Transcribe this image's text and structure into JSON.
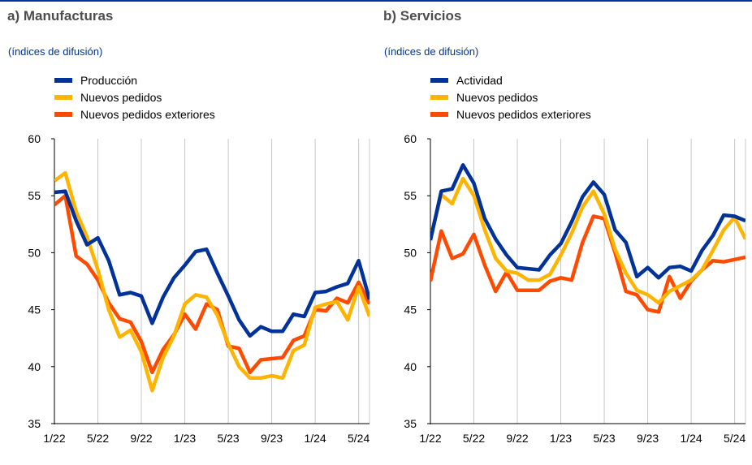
{
  "colors": {
    "blue": "#003299",
    "yellow": "#ffb400",
    "orange": "#ff4b00",
    "grid": "#c8c8c8",
    "subtitle": "#003299",
    "title": "#4d4d4d"
  },
  "panels": [
    {
      "title": "a) Manufacturas",
      "subtitle": "(índices de difusión)"
    },
    {
      "title": "b) Servicios",
      "subtitle": "(índices de difusión)"
    }
  ],
  "chart_data": [
    {
      "type": "line",
      "title": "a) Manufacturas",
      "subtitle": "(índices de difusión)",
      "x": [
        "1/22",
        "2/22",
        "3/22",
        "4/22",
        "5/22",
        "6/22",
        "7/22",
        "8/22",
        "9/22",
        "10/22",
        "11/22",
        "12/22",
        "1/23",
        "2/23",
        "3/23",
        "4/23",
        "5/23",
        "6/23",
        "7/23",
        "8/23",
        "9/23",
        "10/23",
        "11/23",
        "12/23",
        "1/24",
        "2/24",
        "3/24",
        "4/24",
        "5/24",
        "6/24"
      ],
      "xticks": [
        "1/22",
        "5/22",
        "9/22",
        "1/23",
        "5/23",
        "9/23",
        "1/24",
        "5/24"
      ],
      "ylim": [
        35,
        60
      ],
      "yticks": [
        35,
        40,
        45,
        50,
        55,
        60
      ],
      "grid": "vertical",
      "legend_position": "top-left",
      "series": [
        {
          "name": "Producción",
          "color": "#003299",
          "values": [
            55.3,
            55.4,
            52.8,
            50.7,
            51.3,
            49.3,
            46.3,
            46.5,
            46.2,
            43.8,
            46.1,
            47.8,
            48.9,
            50.1,
            50.3,
            48.2,
            46.2,
            44.1,
            42.7,
            43.5,
            43.1,
            43.1,
            44.6,
            44.4,
            46.5,
            46.6,
            47.0,
            47.3,
            49.3,
            45.9
          ]
        },
        {
          "name": "Nuevos pedidos",
          "color": "#ffb400",
          "values": [
            56.3,
            57.0,
            53.6,
            51.4,
            48.5,
            45.0,
            42.6,
            43.2,
            41.3,
            37.9,
            40.8,
            42.7,
            45.5,
            46.3,
            46.1,
            44.5,
            42.0,
            40.0,
            39.0,
            39.0,
            39.2,
            39.0,
            41.4,
            41.9,
            45.2,
            45.5,
            45.7,
            44.1,
            47.0,
            44.4
          ]
        },
        {
          "name": "Nuevos pedidos exteriores",
          "color": "#ff4b00",
          "values": [
            54.2,
            55.0,
            49.7,
            49.0,
            47.6,
            45.6,
            44.2,
            43.9,
            42.2,
            39.5,
            41.5,
            42.8,
            44.6,
            43.3,
            45.5,
            45.0,
            41.8,
            41.6,
            39.5,
            40.6,
            40.7,
            40.8,
            42.3,
            42.7,
            45.0,
            44.9,
            46.0,
            45.6,
            47.4,
            45.5
          ]
        }
      ]
    },
    {
      "type": "line",
      "title": "b) Servicios",
      "subtitle": "(índices de difusión)",
      "x": [
        "1/22",
        "2/22",
        "3/22",
        "4/22",
        "5/22",
        "6/22",
        "7/22",
        "8/22",
        "9/22",
        "10/22",
        "11/22",
        "12/22",
        "1/23",
        "2/23",
        "3/23",
        "4/23",
        "5/23",
        "6/23",
        "7/23",
        "8/23",
        "9/23",
        "10/23",
        "11/23",
        "12/23",
        "1/24",
        "2/24",
        "3/24",
        "4/24",
        "5/24",
        "6/24"
      ],
      "xticks": [
        "1/22",
        "5/22",
        "9/22",
        "1/23",
        "5/23",
        "9/23",
        "1/24",
        "5/24"
      ],
      "ylim": [
        35,
        60
      ],
      "yticks": [
        35,
        40,
        45,
        50,
        55,
        60
      ],
      "grid": "vertical",
      "legend_position": "top-left",
      "series": [
        {
          "name": "Actividad",
          "color": "#003299",
          "values": [
            51.1,
            55.4,
            55.6,
            57.7,
            56.1,
            53.0,
            51.2,
            49.8,
            48.7,
            48.6,
            48.5,
            49.8,
            50.8,
            52.7,
            54.9,
            56.2,
            55.1,
            52.0,
            50.9,
            47.9,
            48.7,
            47.8,
            48.7,
            48.8,
            48.4,
            50.2,
            51.5,
            53.3,
            53.2,
            52.8
          ]
        },
        {
          "name": "Nuevos pedidos",
          "color": "#ffb400",
          "values": [
            51.3,
            55.1,
            54.3,
            56.5,
            55.0,
            52.0,
            49.5,
            48.4,
            48.2,
            47.6,
            47.6,
            48.1,
            49.8,
            51.7,
            54.0,
            55.4,
            53.4,
            50.3,
            48.2,
            46.7,
            46.3,
            45.6,
            46.6,
            47.1,
            47.6,
            48.5,
            50.2,
            52.0,
            53.1,
            51.2
          ]
        },
        {
          "name": "Nuevos pedidos exteriores",
          "color": "#ff4b00",
          "values": [
            47.5,
            51.9,
            49.5,
            49.9,
            51.6,
            48.9,
            46.6,
            48.3,
            46.7,
            46.7,
            46.7,
            47.5,
            47.8,
            47.6,
            50.9,
            53.2,
            53.0,
            50.0,
            46.6,
            46.3,
            45.0,
            44.8,
            47.9,
            46.0,
            47.5,
            48.5,
            49.3,
            49.2,
            49.4,
            49.6
          ]
        }
      ]
    }
  ]
}
